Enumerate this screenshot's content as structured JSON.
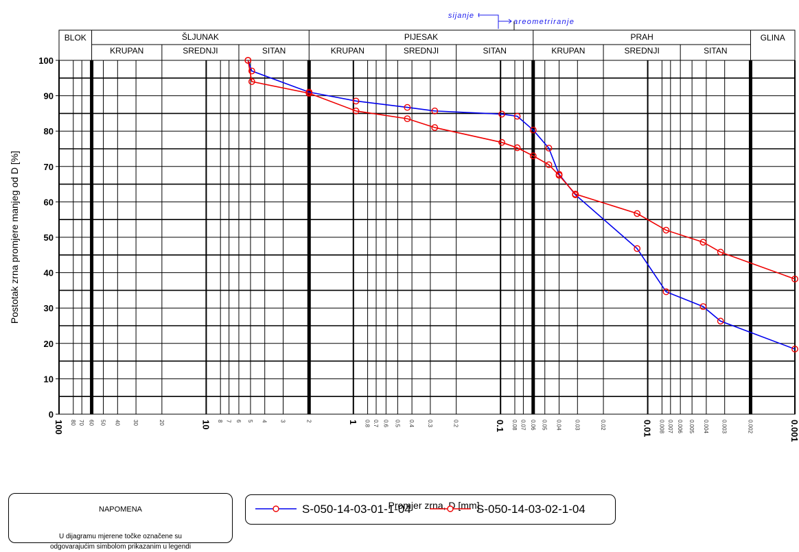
{
  "chart_data": {
    "type": "line",
    "x_scale": "log",
    "xlim": [
      100,
      0.001
    ],
    "ylim": [
      0,
      100
    ],
    "xlabel": "Promjer zrna, D [mm]",
    "ylabel": "Postotak zrna promjere manjeg od D [%]",
    "grid": true,
    "y_ticks": [
      0,
      10,
      20,
      30,
      40,
      50,
      60,
      70,
      80,
      90,
      100
    ],
    "x_tick_labels": [
      {
        "value": 100,
        "label": "100",
        "major": true
      },
      {
        "value": 80,
        "label": "80",
        "major": false
      },
      {
        "value": 70,
        "label": "70",
        "major": false
      },
      {
        "value": 60,
        "label": "60",
        "major": false
      },
      {
        "value": 50,
        "label": "50",
        "major": false
      },
      {
        "value": 40,
        "label": "40",
        "major": false
      },
      {
        "value": 30,
        "label": "30",
        "major": false
      },
      {
        "value": 20,
        "label": "20",
        "major": false
      },
      {
        "value": 10,
        "label": "10",
        "major": true
      },
      {
        "value": 8,
        "label": "8",
        "major": false
      },
      {
        "value": 7,
        "label": "7",
        "major": false
      },
      {
        "value": 6,
        "label": "6",
        "major": false
      },
      {
        "value": 5,
        "label": "5",
        "major": false
      },
      {
        "value": 4,
        "label": "4",
        "major": false
      },
      {
        "value": 3,
        "label": "3",
        "major": false
      },
      {
        "value": 2,
        "label": "2",
        "major": false
      },
      {
        "value": 1,
        "label": "1",
        "major": true
      },
      {
        "value": 0.8,
        "label": "0.8",
        "major": false
      },
      {
        "value": 0.7,
        "label": "0.7",
        "major": false
      },
      {
        "value": 0.6,
        "label": "0.6",
        "major": false
      },
      {
        "value": 0.5,
        "label": "0.5",
        "major": false
      },
      {
        "value": 0.4,
        "label": "0.4",
        "major": false
      },
      {
        "value": 0.3,
        "label": "0.3",
        "major": false
      },
      {
        "value": 0.2,
        "label": "0.2",
        "major": false
      },
      {
        "value": 0.1,
        "label": "0.1",
        "major": true
      },
      {
        "value": 0.08,
        "label": "0.08",
        "major": false
      },
      {
        "value": 0.07,
        "label": "0.07",
        "major": false
      },
      {
        "value": 0.06,
        "label": "0.06",
        "major": false
      },
      {
        "value": 0.05,
        "label": "0.05",
        "major": false
      },
      {
        "value": 0.04,
        "label": "0.04",
        "major": false
      },
      {
        "value": 0.03,
        "label": "0.03",
        "major": false
      },
      {
        "value": 0.02,
        "label": "0.02",
        "major": false
      },
      {
        "value": 0.01,
        "label": "0.01",
        "major": true
      },
      {
        "value": 0.008,
        "label": "0.008",
        "major": false
      },
      {
        "value": 0.007,
        "label": "0.007",
        "major": false
      },
      {
        "value": 0.006,
        "label": "0.006",
        "major": false
      },
      {
        "value": 0.005,
        "label": "0.005",
        "major": false
      },
      {
        "value": 0.004,
        "label": "0.004",
        "major": false
      },
      {
        "value": 0.003,
        "label": "0.003",
        "major": false
      },
      {
        "value": 0.002,
        "label": "0.002",
        "major": false
      },
      {
        "value": 0.001,
        "label": "0.001",
        "major": true
      }
    ],
    "thick_boundaries": [
      60,
      2,
      0.06,
      0.002
    ],
    "classification": {
      "groups": [
        {
          "label": "BLOK",
          "from": 100,
          "to": 60
        },
        {
          "label": "ŠLJUNAK",
          "from": 60,
          "to": 2
        },
        {
          "label": "PIJESAK",
          "from": 2,
          "to": 0.06
        },
        {
          "label": "PRAH",
          "from": 0.06,
          "to": 0.002
        },
        {
          "label": "GLINA",
          "from": 0.002,
          "to": 0.001
        }
      ],
      "subgroups": [
        {
          "label": "KRUPAN",
          "from": 60,
          "to": 20
        },
        {
          "label": "SREDNJI",
          "from": 20,
          "to": 6
        },
        {
          "label": "SITAN",
          "from": 6,
          "to": 2
        },
        {
          "label": "KRUPAN",
          "from": 2,
          "to": 0.6
        },
        {
          "label": "SREDNJI",
          "from": 0.6,
          "to": 0.2
        },
        {
          "label": "SITAN",
          "from": 0.2,
          "to": 0.06
        },
        {
          "label": "KRUPAN",
          "from": 0.06,
          "to": 0.02
        },
        {
          "label": "SREDNJI",
          "from": 0.02,
          "to": 0.006
        },
        {
          "label": "SITAN",
          "from": 0.006,
          "to": 0.002
        }
      ]
    },
    "method_labels": {
      "sieving": "sijanje",
      "hydrometer": "areometriranje"
    },
    "series": [
      {
        "name": "S-050-14-03-01-1-04",
        "color": "#0000ee",
        "marker": "open-circle",
        "x": [
          5.2,
          4.9,
          2.0,
          0.96,
          0.43,
          0.28,
          0.098,
          0.077,
          0.06,
          0.047,
          0.04,
          0.031,
          0.0118,
          0.0075,
          0.0042,
          0.0032,
          0.001
        ],
        "y": [
          100,
          97,
          91,
          88.5,
          86.7,
          85.7,
          84.8,
          84.2,
          80.3,
          75.2,
          67.8,
          62.0,
          46.8,
          34.6,
          30.4,
          26.3,
          18.4
        ]
      },
      {
        "name": "S-050-14-03-02-1-04",
        "color": "#ee0000",
        "marker": "open-circle",
        "x": [
          5.2,
          4.9,
          2.0,
          0.96,
          0.43,
          0.28,
          0.098,
          0.077,
          0.06,
          0.047,
          0.04,
          0.031,
          0.0118,
          0.0075,
          0.0042,
          0.0032,
          0.001
        ],
        "y": [
          100,
          94,
          90.7,
          85.7,
          83.5,
          81.0,
          76.8,
          75.3,
          73.0,
          70.5,
          67.5,
          62.2,
          56.7,
          52.0,
          48.6,
          45.8,
          38.2
        ]
      }
    ]
  },
  "note": {
    "title": "NAPOMENA",
    "text_line1": "U dijagramu mjerene točke označene su",
    "text_line2": "odgovarajućim simbolom prikazanim u legendi"
  }
}
